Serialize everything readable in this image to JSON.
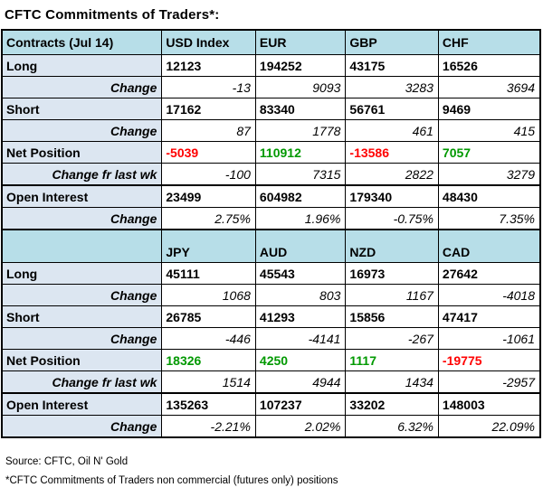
{
  "title": "CFTC Commitments of Traders*:",
  "colors": {
    "header_bg": "#b7dee8",
    "label_bg": "#dce6f1",
    "data_bg": "#ffffff",
    "positive": "#009900",
    "negative": "#ff0000",
    "border": "#000000"
  },
  "footer": {
    "source": "Source: CFTC, Oil N' Gold",
    "note": "*CFTC Commitments of Traders non commercial (futures only) positions"
  },
  "chart_data": {
    "type": "table",
    "title": "CFTC Commitments of Traders*:",
    "sections": [
      {
        "header": [
          "Contracts (Jul 14)",
          "USD Index",
          "EUR",
          "GBP",
          "CHF"
        ],
        "tall": false,
        "rows": [
          {
            "label": "Long",
            "kind": "value",
            "values": [
              "12123",
              "194252",
              "43175",
              "16526"
            ]
          },
          {
            "label": "Change",
            "kind": "change",
            "values": [
              "-13",
              "9093",
              "3283",
              "3694"
            ]
          },
          {
            "label": "Short",
            "kind": "value",
            "values": [
              "17162",
              "83340",
              "56761",
              "9469"
            ]
          },
          {
            "label": "Change",
            "kind": "change",
            "values": [
              "87",
              "1778",
              "461",
              "415"
            ]
          },
          {
            "label": "Net Position",
            "kind": "net",
            "values": [
              "-5039",
              "110912",
              "-13586",
              "7057"
            ]
          },
          {
            "label": "Change fr last wk",
            "kind": "wk",
            "values": [
              "-100",
              "7315",
              "2822",
              "3279"
            ]
          },
          {
            "label": "Open Interest",
            "kind": "oi",
            "values": [
              "23499",
              "604982",
              "179340",
              "48430"
            ]
          },
          {
            "label": "Change",
            "kind": "pct",
            "values": [
              "2.75%",
              "1.96%",
              "-0.75%",
              "7.35%"
            ]
          }
        ]
      },
      {
        "header": [
          "",
          "JPY",
          "AUD",
          "NZD",
          "CAD"
        ],
        "tall": true,
        "rows": [
          {
            "label": "Long",
            "kind": "value",
            "values": [
              "45111",
              "45543",
              "16973",
              "27642"
            ]
          },
          {
            "label": "Change",
            "kind": "change",
            "values": [
              "1068",
              "803",
              "1167",
              "-4018"
            ]
          },
          {
            "label": "Short",
            "kind": "value",
            "values": [
              "26785",
              "41293",
              "15856",
              "47417"
            ]
          },
          {
            "label": "Change",
            "kind": "change",
            "values": [
              "-446",
              "-4141",
              "-267",
              "-1061"
            ]
          },
          {
            "label": "Net Position",
            "kind": "net",
            "values": [
              "18326",
              "4250",
              "1117",
              "-19775"
            ]
          },
          {
            "label": "Change fr last wk",
            "kind": "wk",
            "values": [
              "1514",
              "4944",
              "1434",
              "-2957"
            ]
          },
          {
            "label": "Open Interest",
            "kind": "oi",
            "values": [
              "135263",
              "107237",
              "33202",
              "148003"
            ]
          },
          {
            "label": "Change",
            "kind": "pct",
            "values": [
              "-2.21%",
              "2.02%",
              "6.32%",
              "22.09%"
            ]
          }
        ]
      }
    ]
  }
}
